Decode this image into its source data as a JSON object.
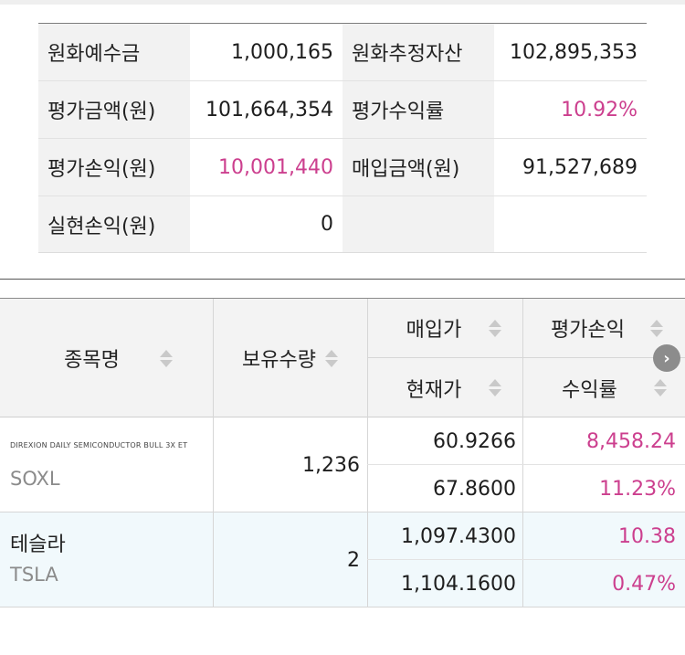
{
  "summary": {
    "rows": [
      {
        "label1": "원화예수금",
        "value1": "1,000,165",
        "label2": "원화추정자산",
        "value2": "102,895,353"
      },
      {
        "label1": "평가금액(원)",
        "value1": "101,664,354",
        "label2": "평가수익률",
        "value2": "10.92%"
      },
      {
        "label1": "평가손익(원)",
        "value1": "10,001,440",
        "label2": "매입금액(원)",
        "value2": "91,527,689"
      },
      {
        "label1": "실현손익(원)",
        "value1": "0",
        "label2": "",
        "value2": ""
      }
    ]
  },
  "holdings": {
    "headers": {
      "name": "종목명",
      "quantity": "보유수량",
      "buy_price": "매입가",
      "current_price": "현재가",
      "eval_pnl": "평가손익",
      "return_rate": "수익률"
    },
    "rows": [
      {
        "full_name": "DIREXION DAILY SEMICONDUCTOR BULL 3X ET",
        "name": "",
        "ticker": "SOXL",
        "quantity": "1,236",
        "buy_price": "60.9266",
        "current_price": "67.8600",
        "eval_pnl": "8,458.24",
        "return_rate": "11.23%"
      },
      {
        "full_name": "",
        "name": "테슬라",
        "ticker": "TSLA",
        "quantity": "2",
        "buy_price": "1,097.4300",
        "current_price": "1,104.1600",
        "eval_pnl": "10.38",
        "return_rate": "0.47%"
      }
    ]
  },
  "colors": {
    "accent_positive": "#cc3f8e",
    "label_bg": "#f2f2f2",
    "alt_row_bg": "#f1f9fc"
  },
  "icons": {
    "scroll_right": "chevron-right-icon",
    "sort": "sort-arrows-icon"
  }
}
